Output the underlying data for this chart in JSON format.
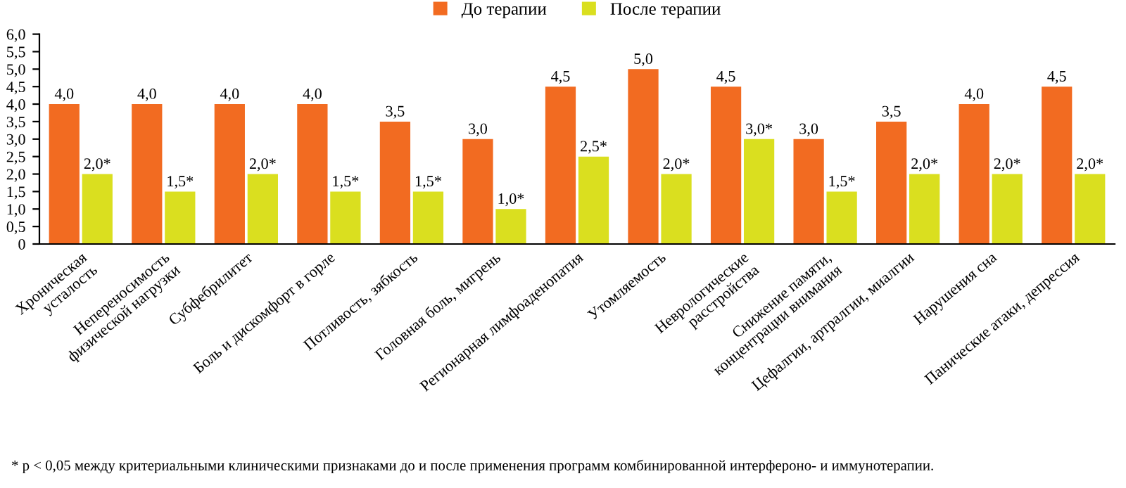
{
  "chart_data": {
    "type": "bar",
    "categories": [
      "Хроническая\nусталость",
      "Непереносимость\nфизической нагрузки",
      "Субфебрилитет",
      "Боль и дискомфорт в горле",
      "Потливость, зябкость",
      "Головная боль, мигрень",
      "Регионарная лимфоаденопатия",
      "Утомляемость",
      "Неврологические\nрасстройства",
      "Снижение памяти,\nконцентрации внимания",
      "Цефалгии, артралгии, миалгии",
      "Нарушения сна",
      "Панические атаки, депрессия"
    ],
    "series": [
      {
        "name": "До терапии",
        "color": "#f26b21",
        "values": [
          4.0,
          4.0,
          4.0,
          4.0,
          3.5,
          3.0,
          4.5,
          5.0,
          4.5,
          3.0,
          3.5,
          4.0,
          4.5
        ],
        "value_labels": [
          "4,0",
          "4,0",
          "4,0",
          "4,0",
          "3,5",
          "3,0",
          "4,5",
          "5,0",
          "4,5",
          "3,0",
          "3,5",
          "4,0",
          "4,5"
        ]
      },
      {
        "name": "После терапии",
        "color": "#dadf1f",
        "values": [
          2.0,
          1.5,
          2.0,
          1.5,
          1.5,
          1.0,
          2.5,
          2.0,
          3.0,
          1.5,
          2.0,
          2.0,
          2.0
        ],
        "value_labels": [
          "2,0*",
          "1,5*",
          "2,0*",
          "1,5*",
          "1,5*",
          "1,0*",
          "2,5*",
          "2,0*",
          "3,0*",
          "1,5*",
          "2,0*",
          "2,0*",
          "2,0*"
        ]
      }
    ],
    "ylim": [
      0,
      6
    ],
    "yticks": [
      0,
      {
        "value": 0.5,
        "label": "0,5"
      },
      {
        "value": 1,
        "label": "1,0"
      },
      {
        "value": 1.5,
        "label": "1,5"
      },
      {
        "value": 2,
        "label": "2,0"
      },
      {
        "value": 2.5,
        "label": "2,5"
      },
      {
        "value": 3,
        "label": "3,0"
      },
      {
        "value": 3.5,
        "label": "3,5"
      },
      {
        "value": 4,
        "label": "4,0"
      },
      {
        "value": 4.5,
        "label": "4,5"
      },
      {
        "value": 5,
        "label": "5,0"
      },
      {
        "value": 5.5,
        "label": "5,5"
      },
      {
        "value": 6,
        "label": "6,0"
      }
    ],
    "grid": false,
    "legend": "top",
    "annotations": [
      "* p < 0,05 между критериальными клиническими признаками до и после применения программ комбинированной интерфероно- и иммунотерапии."
    ]
  }
}
